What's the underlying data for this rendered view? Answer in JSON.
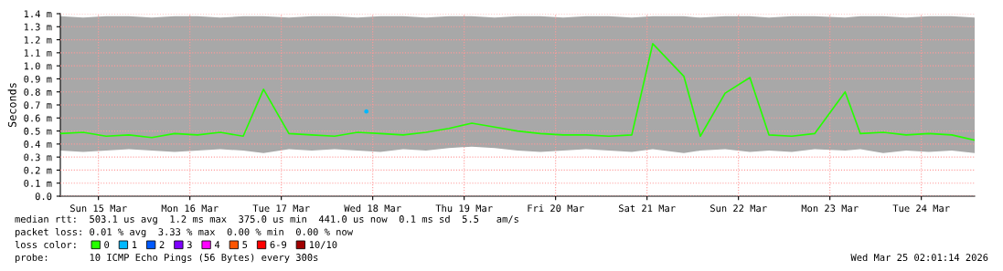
{
  "chart_data": {
    "type": "line",
    "ylabel": "Seconds",
    "legend_title": "loss color:",
    "legend": "bottom",
    "grid": true,
    "marker": "none",
    "line_style": "solid",
    "xlim": [
      "2026-03-15T02:00",
      "2026-03-25T02:00"
    ],
    "xticks": [
      {
        "value": "2026-03-15T12:00",
        "label": "Sun 15 Mar"
      },
      {
        "value": "2026-03-16T12:00",
        "label": "Mon 16 Mar"
      },
      {
        "value": "2026-03-17T12:00",
        "label": "Tue 17 Mar"
      },
      {
        "value": "2026-03-18T12:00",
        "label": "Wed 18 Mar"
      },
      {
        "value": "2026-03-19T12:00",
        "label": "Thu 19 Mar"
      },
      {
        "value": "2026-03-20T12:00",
        "label": "Fri 20 Mar"
      },
      {
        "value": "2026-03-21T12:00",
        "label": "Sat 21 Mar"
      },
      {
        "value": "2026-03-22T12:00",
        "label": "Sun 22 Mar"
      },
      {
        "value": "2026-03-23T12:00",
        "label": "Mon 23 Mar"
      },
      {
        "value": "2026-03-24T12:00",
        "label": "Tue 24 Mar"
      }
    ],
    "ylim": [
      0,
      1.4
    ],
    "yticks": [
      {
        "value": 0,
        "label": "0.0"
      },
      {
        "value": 0.1,
        "label": "0.1 m"
      },
      {
        "value": 0.2,
        "label": "0.2 m"
      },
      {
        "value": 0.3,
        "label": "0.3 m"
      },
      {
        "value": 0.4,
        "label": "0.4 m"
      },
      {
        "value": 0.5,
        "label": "0.5 m"
      },
      {
        "value": 0.6,
        "label": "0.6 m"
      },
      {
        "value": 0.7,
        "label": "0.7 m"
      },
      {
        "value": 0.8,
        "label": "0.8 m"
      },
      {
        "value": 0.9,
        "label": "0.9 m"
      },
      {
        "value": 1.0,
        "label": "1.0 m"
      },
      {
        "value": 1.1,
        "label": "1.1 m"
      },
      {
        "value": 1.2,
        "label": "1.2 m"
      },
      {
        "value": 1.3,
        "label": "1.3 m"
      },
      {
        "value": 1.4,
        "label": "1.4 m"
      }
    ],
    "series": [
      {
        "name": "0",
        "color": "#26ff00",
        "x": [
          "2026-03-15T02:00",
          "2026-03-15T08:00",
          "2026-03-15T14:00",
          "2026-03-15T20:00",
          "2026-03-16T02:00",
          "2026-03-16T08:00",
          "2026-03-16T14:00",
          "2026-03-16T20:00",
          "2026-03-17T02:00",
          "2026-03-17T07:20",
          "2026-03-17T14:00",
          "2026-03-17T20:00",
          "2026-03-18T02:00",
          "2026-03-18T08:00",
          "2026-03-18T14:00",
          "2026-03-18T20:00",
          "2026-03-19T02:00",
          "2026-03-19T08:00",
          "2026-03-19T14:00",
          "2026-03-19T20:00",
          "2026-03-20T02:00",
          "2026-03-20T08:00",
          "2026-03-20T14:00",
          "2026-03-20T20:00",
          "2026-03-21T02:00",
          "2026-03-21T08:00",
          "2026-03-21T13:30",
          "2026-03-21T21:40",
          "2026-03-22T02:00",
          "2026-03-22T08:30",
          "2026-03-22T15:00",
          "2026-03-22T20:00",
          "2026-03-23T02:00",
          "2026-03-23T08:00",
          "2026-03-23T16:00",
          "2026-03-23T20:00",
          "2026-03-24T02:00",
          "2026-03-24T08:00",
          "2026-03-24T14:00",
          "2026-03-24T20:00",
          "2026-03-25T02:00"
        ],
        "values": [
          0.48,
          0.49,
          0.46,
          0.47,
          0.45,
          0.48,
          0.47,
          0.49,
          0.46,
          0.82,
          0.48,
          0.47,
          0.46,
          0.49,
          0.48,
          0.47,
          0.49,
          0.52,
          0.56,
          0.53,
          0.5,
          0.48,
          0.47,
          0.47,
          0.46,
          0.47,
          1.17,
          0.92,
          0.46,
          0.79,
          0.91,
          0.47,
          0.46,
          0.48,
          0.8,
          0.48,
          0.49,
          0.47,
          0.48,
          0.47,
          0.43
        ],
        "lower": [
          0.35,
          0.34,
          0.35,
          0.36,
          0.35,
          0.34,
          0.35,
          0.36,
          0.35,
          0.33,
          0.36,
          0.35,
          0.36,
          0.35,
          0.34,
          0.36,
          0.35,
          0.37,
          0.38,
          0.37,
          0.35,
          0.34,
          0.35,
          0.36,
          0.35,
          0.34,
          0.36,
          0.33,
          0.35,
          0.36,
          0.34,
          0.35,
          0.34,
          0.36,
          0.35,
          0.36,
          0.33,
          0.35,
          0.34,
          0.35,
          0.33
        ],
        "upper": [
          1.38,
          1.37,
          1.38,
          1.38,
          1.37,
          1.38,
          1.38,
          1.37,
          1.38,
          1.38,
          1.37,
          1.38,
          1.38,
          1.37,
          1.38,
          1.38,
          1.37,
          1.38,
          1.38,
          1.37,
          1.38,
          1.38,
          1.37,
          1.38,
          1.38,
          1.37,
          1.38,
          1.38,
          1.37,
          1.38,
          1.38,
          1.37,
          1.38,
          1.38,
          1.37,
          1.38,
          1.38,
          1.37,
          1.38,
          1.38,
          1.37
        ]
      },
      {
        "name": "1",
        "color": "#00b8ff",
        "type": "scatter",
        "x": [
          "2026-03-18T10:20"
        ],
        "values": [
          0.65
        ]
      },
      {
        "name": "2",
        "color": "#0059ff"
      },
      {
        "name": "3",
        "color": "#7e00ff"
      },
      {
        "name": "4",
        "color": "#ff00ff"
      },
      {
        "name": "5",
        "color": "#ff5500"
      },
      {
        "name": "6-9",
        "color": "#ff0000"
      },
      {
        "name": "10/10",
        "color": "#a10000"
      }
    ],
    "annotations": [
      "median rtt:  503.1 us avg  1.2 ms max  375.0 us min  441.0 us now  0.1 ms sd  5.5   am/s",
      "packet loss: 0.01 % avg  3.33 % max  0.00 % min  0.00 % now",
      "probe:       10 ICMP Echo Pings (56 Bytes) every 300s",
      "Wed Mar 25 02:01:14 2026"
    ]
  }
}
